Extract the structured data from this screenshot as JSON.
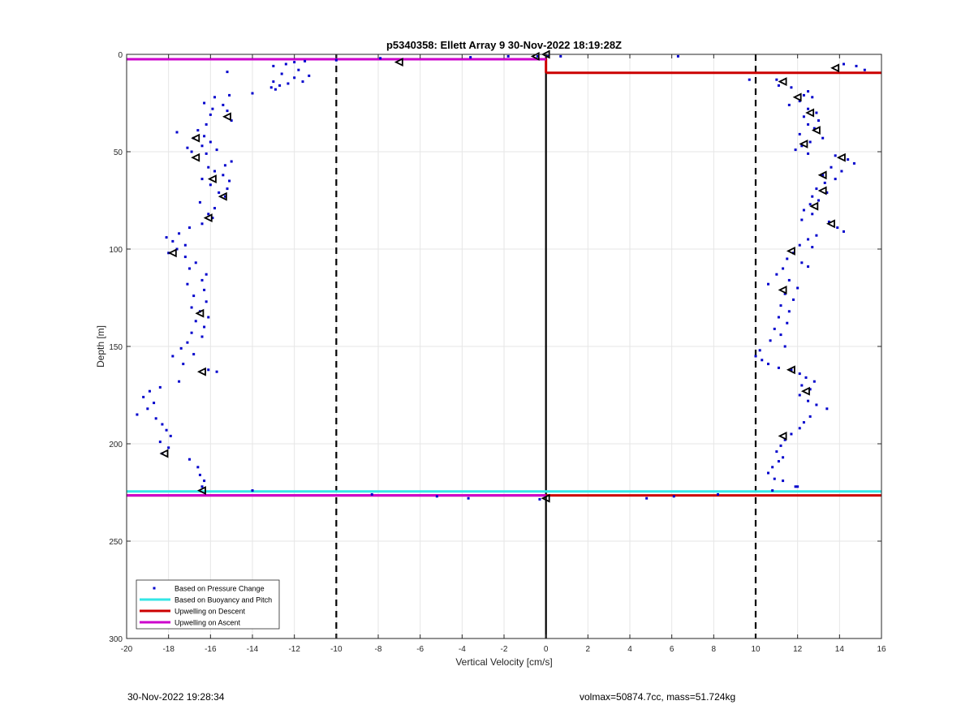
{
  "chart_data": {
    "type": "scatter",
    "title": "p5340358: Ellett Array 9 30-Nov-2022 18:19:28Z",
    "xlabel": "Vertical Velocity [cm/s]",
    "ylabel": "Depth [m]",
    "xlim": [
      -20,
      16
    ],
    "ylim": [
      0,
      300
    ],
    "y_reversed": true,
    "grid": true,
    "x_ticks": [
      -20,
      -18,
      -16,
      -14,
      -12,
      -10,
      -8,
      -6,
      -4,
      -2,
      0,
      2,
      4,
      6,
      8,
      10,
      12,
      14,
      16
    ],
    "y_ticks": [
      0,
      50,
      100,
      150,
      200,
      250,
      300
    ],
    "legend_position": "bottom-left",
    "legend": [
      {
        "label": "Based on Pressure Change",
        "color": "#0000cc",
        "kind": "marker"
      },
      {
        "label": "Based on Buoyancy and Pitch",
        "color": "#33e6e6",
        "kind": "line"
      },
      {
        "label": "Upwelling on Descent",
        "color": "#cc0000",
        "kind": "line"
      },
      {
        "label": "Upwelling on Ascent",
        "color": "#cc00cc",
        "kind": "line"
      }
    ],
    "reference_lines": [
      {
        "x": -10,
        "style": "dashed",
        "color": "#000000"
      },
      {
        "x": 0,
        "style": "solid",
        "color": "#000000"
      },
      {
        "x": 10,
        "style": "dashed",
        "color": "#000000"
      }
    ],
    "series": [
      {
        "name": "Based on Pressure Change",
        "color": "#0000cc",
        "points": [
          [
            0.1,
            1
          ],
          [
            0.7,
            1
          ],
          [
            6.3,
            1
          ],
          [
            -0.4,
            1
          ],
          [
            -1.8,
            1
          ],
          [
            -3.6,
            1.5
          ],
          [
            -7.9,
            2
          ],
          [
            -10,
            3
          ],
          [
            -12,
            4
          ],
          [
            -11.5,
            3.5
          ],
          [
            -13,
            6
          ],
          [
            -12.4,
            5
          ],
          [
            -11.8,
            8
          ],
          [
            -12.6,
            10
          ],
          [
            -11.3,
            11
          ],
          [
            -12,
            12
          ],
          [
            -11.6,
            14
          ],
          [
            -13,
            14
          ],
          [
            -12.3,
            15
          ],
          [
            -12.7,
            16
          ],
          [
            -13.1,
            17
          ],
          [
            -12.9,
            18
          ],
          [
            -14,
            20
          ],
          [
            -15.2,
            9
          ],
          [
            -15.1,
            21
          ],
          [
            -15.8,
            22
          ],
          [
            -16.3,
            25
          ],
          [
            -15.4,
            26
          ],
          [
            -15.9,
            28
          ],
          [
            -15.2,
            29
          ],
          [
            -16,
            31
          ],
          [
            -15,
            34
          ],
          [
            -16.2,
            36
          ],
          [
            -16.6,
            39
          ],
          [
            -16.3,
            42
          ],
          [
            -17.6,
            40
          ],
          [
            -16.8,
            43
          ],
          [
            -16,
            45
          ],
          [
            -16.4,
            47
          ],
          [
            -17.1,
            48
          ],
          [
            -16.9,
            50
          ],
          [
            -15.7,
            49
          ],
          [
            -16.2,
            51
          ],
          [
            -15,
            55
          ],
          [
            -15.3,
            57
          ],
          [
            -16.1,
            58
          ],
          [
            -15.8,
            60
          ],
          [
            -15.4,
            62
          ],
          [
            -16.4,
            64
          ],
          [
            -15.1,
            65
          ],
          [
            -16,
            67
          ],
          [
            -15.2,
            69
          ],
          [
            -15.6,
            71
          ],
          [
            -15.3,
            73
          ],
          [
            -16.5,
            76
          ],
          [
            -15.8,
            79
          ],
          [
            -16.1,
            82
          ],
          [
            -15.9,
            84
          ],
          [
            -16.4,
            87
          ],
          [
            -17,
            89
          ],
          [
            -17.5,
            92
          ],
          [
            -18.1,
            94
          ],
          [
            -17.8,
            96
          ],
          [
            -17.2,
            98
          ],
          [
            -17.6,
            100
          ],
          [
            -18,
            102
          ],
          [
            -17.2,
            104
          ],
          [
            -16.7,
            107
          ],
          [
            -17,
            110
          ],
          [
            -16.2,
            113
          ],
          [
            -16.4,
            116
          ],
          [
            -17.1,
            118
          ],
          [
            -16.3,
            121
          ],
          [
            -16.8,
            124
          ],
          [
            -16.2,
            127
          ],
          [
            -16.9,
            130
          ],
          [
            -16.5,
            132
          ],
          [
            -16.1,
            135
          ],
          [
            -16.7,
            137
          ],
          [
            -16.3,
            140
          ],
          [
            -16.9,
            143
          ],
          [
            -16.4,
            145
          ],
          [
            -17.1,
            148
          ],
          [
            -17.4,
            151
          ],
          [
            -16.8,
            154
          ],
          [
            -17.8,
            155
          ],
          [
            -17.3,
            159
          ],
          [
            -16.1,
            162
          ],
          [
            -15.7,
            163
          ],
          [
            -17.5,
            168
          ],
          [
            -18.4,
            171
          ],
          [
            -18.9,
            173
          ],
          [
            -19.2,
            176
          ],
          [
            -18.7,
            179
          ],
          [
            -19,
            182
          ],
          [
            -19.5,
            185
          ],
          [
            -18.6,
            187
          ],
          [
            -18.3,
            190
          ],
          [
            -18.1,
            193
          ],
          [
            -17.9,
            196
          ],
          [
            -18.4,
            199
          ],
          [
            -18,
            202
          ],
          [
            -18.3,
            205
          ],
          [
            -17,
            208
          ],
          [
            -16.6,
            212
          ],
          [
            -16.5,
            216
          ],
          [
            -16.3,
            219
          ],
          [
            -16.4,
            222
          ],
          [
            -14,
            224
          ],
          [
            -8.3,
            226
          ],
          [
            -5.2,
            227
          ],
          [
            -3.7,
            228
          ],
          [
            -0.3,
            228.5
          ],
          [
            4.8,
            228
          ],
          [
            6.1,
            227
          ],
          [
            8.2,
            226
          ],
          [
            10.8,
            224
          ],
          [
            12,
            222
          ],
          [
            14.8,
            6
          ],
          [
            15.2,
            8
          ],
          [
            14.2,
            5
          ],
          [
            11,
            13
          ],
          [
            9.7,
            13
          ],
          [
            11.1,
            16
          ],
          [
            11.7,
            17
          ],
          [
            12.5,
            19
          ],
          [
            12.3,
            21
          ],
          [
            12.7,
            22
          ],
          [
            12.1,
            24
          ],
          [
            11.6,
            26
          ],
          [
            12.5,
            28
          ],
          [
            12.9,
            30
          ],
          [
            12.3,
            32
          ],
          [
            13,
            34
          ],
          [
            12.5,
            36
          ],
          [
            12.8,
            38
          ],
          [
            12.1,
            41
          ],
          [
            13.2,
            43
          ],
          [
            12.6,
            45
          ],
          [
            12.2,
            47
          ],
          [
            11.9,
            49
          ],
          [
            12.5,
            51
          ],
          [
            13.8,
            52
          ],
          [
            14.4,
            54
          ],
          [
            14.7,
            56
          ],
          [
            13.6,
            58
          ],
          [
            14.1,
            60
          ],
          [
            13.2,
            62
          ],
          [
            13.8,
            64
          ],
          [
            13.3,
            66
          ],
          [
            12.9,
            69
          ],
          [
            13.4,
            71
          ],
          [
            12.7,
            73
          ],
          [
            13,
            75
          ],
          [
            12.6,
            77
          ],
          [
            12.3,
            80
          ],
          [
            12.7,
            82
          ],
          [
            12.2,
            85
          ],
          [
            13.5,
            86
          ],
          [
            13.9,
            89
          ],
          [
            14.2,
            91
          ],
          [
            12.9,
            93
          ],
          [
            12.5,
            95
          ],
          [
            12.1,
            98
          ],
          [
            12.7,
            99
          ],
          [
            11.8,
            102
          ],
          [
            11.5,
            105
          ],
          [
            12.2,
            107
          ],
          [
            11.3,
            110
          ],
          [
            12.5,
            109
          ],
          [
            11,
            113
          ],
          [
            11.6,
            116
          ],
          [
            10.6,
            118
          ],
          [
            12,
            120
          ],
          [
            11.4,
            123
          ],
          [
            11.8,
            126
          ],
          [
            11.2,
            129
          ],
          [
            11.6,
            132
          ],
          [
            11.1,
            135
          ],
          [
            11.5,
            138
          ],
          [
            10.9,
            141
          ],
          [
            11.2,
            144
          ],
          [
            10.7,
            147
          ],
          [
            11.4,
            150
          ],
          [
            10.2,
            152
          ],
          [
            10,
            155
          ],
          [
            10.3,
            157
          ],
          [
            10.6,
            159
          ],
          [
            11.1,
            161
          ],
          [
            11.7,
            162
          ],
          [
            12.1,
            164
          ],
          [
            12.4,
            166
          ],
          [
            12.8,
            168
          ],
          [
            12.2,
            170
          ],
          [
            12.6,
            172
          ],
          [
            12.1,
            175
          ],
          [
            12.5,
            178
          ],
          [
            12.9,
            180
          ],
          [
            13.4,
            182
          ],
          [
            12.6,
            186
          ],
          [
            12.3,
            189
          ],
          [
            12.1,
            192
          ],
          [
            11.7,
            195
          ],
          [
            11.4,
            198
          ],
          [
            11.2,
            201
          ],
          [
            11,
            204
          ],
          [
            11.3,
            207
          ],
          [
            11.1,
            209
          ],
          [
            10.8,
            212
          ],
          [
            10.6,
            215
          ],
          [
            10.9,
            218
          ],
          [
            11.3,
            219
          ],
          [
            11.9,
            222
          ]
        ]
      },
      {
        "name": "Triangle markers",
        "color": "#000000",
        "points": [
          [
            0,
            0
          ],
          [
            -0.5,
            1
          ],
          [
            -7,
            4
          ],
          [
            -18.2,
            205
          ],
          [
            -17.8,
            102
          ],
          [
            -16.5,
            133
          ],
          [
            -16.4,
            163
          ],
          [
            -16.7,
            43
          ],
          [
            -16.7,
            53
          ],
          [
            -15.9,
            64
          ],
          [
            -15.4,
            73
          ],
          [
            -16.1,
            84
          ],
          [
            -15.2,
            32
          ],
          [
            -16.4,
            224
          ],
          [
            13.8,
            7
          ],
          [
            11.3,
            14
          ],
          [
            12,
            22
          ],
          [
            12.6,
            30
          ],
          [
            12.9,
            39
          ],
          [
            12.3,
            46
          ],
          [
            14.1,
            53
          ],
          [
            13.2,
            62
          ],
          [
            13.2,
            70
          ],
          [
            12.8,
            78
          ],
          [
            13.6,
            87
          ],
          [
            11.7,
            101
          ],
          [
            11.3,
            121
          ],
          [
            11.7,
            162
          ],
          [
            12.4,
            173
          ],
          [
            11.3,
            196
          ],
          [
            0,
            228
          ]
        ]
      },
      {
        "name": "Based on Buoyancy and Pitch",
        "color": "#33e6e6",
        "segments": [
          {
            "x": [
              -20,
              16
            ],
            "y": [
              224.5,
              224.5
            ]
          }
        ]
      },
      {
        "name": "Upwelling on Descent",
        "color": "#cc0000",
        "segments": [
          {
            "x": [
              0,
              0
            ],
            "y": [
              2,
              9.5
            ]
          },
          {
            "x": [
              0,
              16
            ],
            "y": [
              9.5,
              9.5
            ]
          },
          {
            "x": [
              -20,
              16
            ],
            "y": [
              226.5,
              226.5
            ]
          }
        ]
      },
      {
        "name": "Upwelling on Ascent",
        "color": "#cc00cc",
        "segments": [
          {
            "x": [
              -20,
              0
            ],
            "y": [
              2.5,
              2.5
            ]
          },
          {
            "x": [
              -20,
              0
            ],
            "y": [
              226.5,
              226.5
            ]
          }
        ]
      }
    ]
  },
  "footer": {
    "left": "30-Nov-2022 19:28:34",
    "right": "volmax=50874.7cc, mass=51.724kg"
  }
}
